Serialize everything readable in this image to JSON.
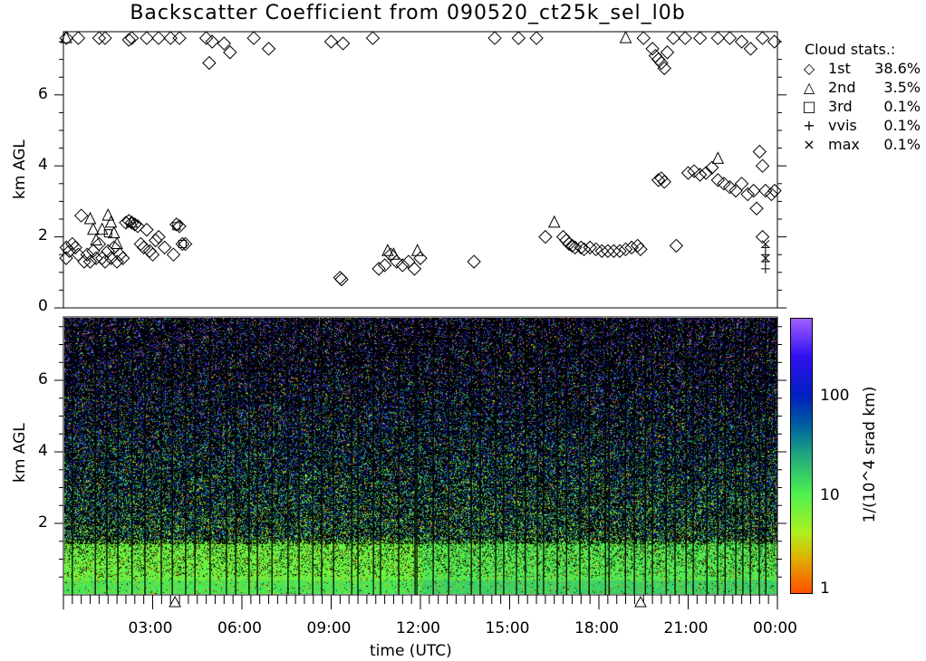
{
  "title": "Backscatter Coefficient from 090520_ct25k_sel_l0b",
  "chart_data": [
    {
      "type": "scatter",
      "panel": "cloud-base",
      "xlabel": "",
      "ylabel": "km AGL",
      "xlim_hours": [
        0,
        24
      ],
      "ylim": [
        0,
        7.7
      ],
      "yticks": [
        "0",
        "2",
        "4",
        "6"
      ],
      "legend": {
        "title": "Cloud stats.:",
        "placement": "right",
        "entries": [
          {
            "symbol": "diamond",
            "glyph": "◇",
            "name": "1st",
            "percent": "38.6%"
          },
          {
            "symbol": "triangle",
            "glyph": "△",
            "name": "2nd",
            "percent": "3.5%"
          },
          {
            "symbol": "square",
            "glyph": "□",
            "name": "3rd",
            "percent": "0.1%"
          },
          {
            "symbol": "plus",
            "glyph": "+",
            "name": "vvis",
            "percent": "0.1%"
          },
          {
            "symbol": "cross",
            "glyph": "×",
            "name": "max",
            "percent": "0.1%"
          }
        ]
      },
      "series": [
        {
          "name": "1st",
          "symbol": "diamond",
          "points": [
            [
              0.05,
              1.4
            ],
            [
              0.1,
              1.7
            ],
            [
              0.2,
              1.6
            ],
            [
              0.3,
              1.8
            ],
            [
              0.4,
              1.7
            ],
            [
              0.5,
              1.5
            ],
            [
              0.6,
              2.6
            ],
            [
              0.7,
              1.3
            ],
            [
              0.8,
              1.5
            ],
            [
              0.9,
              1.3
            ],
            [
              1.0,
              1.6
            ],
            [
              1.1,
              1.4
            ],
            [
              1.2,
              1.8
            ],
            [
              1.3,
              1.4
            ],
            [
              1.4,
              1.3
            ],
            [
              1.5,
              1.6
            ],
            [
              1.6,
              1.4
            ],
            [
              1.7,
              1.7
            ],
            [
              1.8,
              1.3
            ],
            [
              1.9,
              1.5
            ],
            [
              2.0,
              1.4
            ],
            [
              2.1,
              2.4
            ],
            [
              2.2,
              2.45
            ],
            [
              2.3,
              2.4
            ],
            [
              2.4,
              2.35
            ],
            [
              2.5,
              2.3
            ],
            [
              2.6,
              1.8
            ],
            [
              2.7,
              1.7
            ],
            [
              2.8,
              2.2
            ],
            [
              2.9,
              1.6
            ],
            [
              3.0,
              1.5
            ],
            [
              3.1,
              1.9
            ],
            [
              3.2,
              2.0
            ],
            [
              3.4,
              1.7
            ],
            [
              3.7,
              1.5
            ],
            [
              3.8,
              2.35
            ],
            [
              3.9,
              2.3
            ],
            [
              4.0,
              1.8
            ],
            [
              4.1,
              1.8
            ],
            [
              0.1,
              7.6
            ],
            [
              0.5,
              7.6
            ],
            [
              1.2,
              7.6
            ],
            [
              1.4,
              7.6
            ],
            [
              2.2,
              7.55
            ],
            [
              2.3,
              7.6
            ],
            [
              2.8,
              7.6
            ],
            [
              3.2,
              7.6
            ],
            [
              3.6,
              7.6
            ],
            [
              3.9,
              7.6
            ],
            [
              4.8,
              7.6
            ],
            [
              4.9,
              6.9
            ],
            [
              5.0,
              7.5
            ],
            [
              5.4,
              7.45
            ],
            [
              5.6,
              7.2
            ],
            [
              6.4,
              7.6
            ],
            [
              6.9,
              7.3
            ],
            [
              9.0,
              7.5
            ],
            [
              9.4,
              7.45
            ],
            [
              10.4,
              7.6
            ],
            [
              14.5,
              7.6
            ],
            [
              15.3,
              7.6
            ],
            [
              15.9,
              7.6
            ],
            [
              9.3,
              0.85
            ],
            [
              9.35,
              0.8
            ],
            [
              10.6,
              1.1
            ],
            [
              10.8,
              1.2
            ],
            [
              11.0,
              1.5
            ],
            [
              11.2,
              1.3
            ],
            [
              11.4,
              1.2
            ],
            [
              11.6,
              1.3
            ],
            [
              11.8,
              1.1
            ],
            [
              12.0,
              1.4
            ],
            [
              13.8,
              1.3
            ],
            [
              16.2,
              2.0
            ],
            [
              16.8,
              2.0
            ],
            [
              16.9,
              1.9
            ],
            [
              17.0,
              1.8
            ],
            [
              17.1,
              1.75
            ],
            [
              17.2,
              1.7
            ],
            [
              17.4,
              1.7
            ],
            [
              17.5,
              1.65
            ],
            [
              17.7,
              1.7
            ],
            [
              17.9,
              1.65
            ],
            [
              18.1,
              1.6
            ],
            [
              18.3,
              1.6
            ],
            [
              18.5,
              1.6
            ],
            [
              18.7,
              1.6
            ],
            [
              18.9,
              1.65
            ],
            [
              19.1,
              1.7
            ],
            [
              19.3,
              1.75
            ],
            [
              19.4,
              1.65
            ],
            [
              19.5,
              7.6
            ],
            [
              19.8,
              7.3
            ],
            [
              19.9,
              7.1
            ],
            [
              20.0,
              7.0
            ],
            [
              20.1,
              6.9
            ],
            [
              20.2,
              6.75
            ],
            [
              20.3,
              7.2
            ],
            [
              20.5,
              7.6
            ],
            [
              20.9,
              7.6
            ],
            [
              21.4,
              7.6
            ],
            [
              22.0,
              7.6
            ],
            [
              22.4,
              7.6
            ],
            [
              22.8,
              7.5
            ],
            [
              23.1,
              7.3
            ],
            [
              23.5,
              7.6
            ],
            [
              23.9,
              7.5
            ],
            [
              20.0,
              3.6
            ],
            [
              20.1,
              3.65
            ],
            [
              20.2,
              3.55
            ],
            [
              20.6,
              1.75
            ],
            [
              21.0,
              3.8
            ],
            [
              21.2,
              3.85
            ],
            [
              21.4,
              3.75
            ],
            [
              21.6,
              3.8
            ],
            [
              21.8,
              3.95
            ],
            [
              22.0,
              3.6
            ],
            [
              22.2,
              3.5
            ],
            [
              22.4,
              3.4
            ],
            [
              22.6,
              3.3
            ],
            [
              22.8,
              3.5
            ],
            [
              23.0,
              3.2
            ],
            [
              23.2,
              3.3
            ],
            [
              23.3,
              2.8
            ],
            [
              23.4,
              4.4
            ],
            [
              23.5,
              4.0
            ],
            [
              23.5,
              2.0
            ],
            [
              23.6,
              3.3
            ],
            [
              23.8,
              3.2
            ],
            [
              24.0,
              3.3
            ]
          ]
        },
        {
          "name": "2nd",
          "symbol": "triangle",
          "points": [
            [
              0.0,
              7.6
            ],
            [
              0.9,
              2.5
            ],
            [
              1.0,
              2.2
            ],
            [
              1.1,
              1.9
            ],
            [
              1.3,
              2.2
            ],
            [
              1.5,
              2.6
            ],
            [
              1.6,
              2.4
            ],
            [
              1.7,
              2.1
            ],
            [
              1.8,
              1.8
            ],
            [
              2.3,
              2.4
            ],
            [
              10.9,
              1.6
            ],
            [
              11.1,
              1.5
            ],
            [
              11.9,
              1.6
            ],
            [
              16.5,
              2.4
            ],
            [
              18.9,
              7.6
            ],
            [
              22.0,
              4.2
            ]
          ]
        },
        {
          "name": "3rd",
          "symbol": "square",
          "points": [
            [
              1.5,
              2.1
            ],
            [
              3.8,
              2.3
            ],
            [
              4.0,
              1.8
            ]
          ]
        },
        {
          "name": "vvis",
          "symbol": "plus",
          "points": [
            [
              23.6,
              1.1
            ],
            [
              23.6,
              1.3
            ],
            [
              23.6,
              1.5
            ],
            [
              23.6,
              1.7
            ]
          ]
        },
        {
          "name": "max",
          "symbol": "cross",
          "points": [
            [
              23.6,
              1.4
            ],
            [
              23.6,
              1.8
            ]
          ]
        }
      ]
    },
    {
      "type": "heatmap",
      "panel": "backscatter",
      "xlabel": "time (UTC)",
      "ylabel": "km AGL",
      "xlim_hours": [
        0,
        24
      ],
      "ylim": [
        0,
        7.7
      ],
      "yticks": [
        "2",
        "4",
        "6"
      ],
      "xticks": [
        "03:00",
        "06:00",
        "09:00",
        "12:00",
        "15:00",
        "18:00",
        "21:00",
        "00:00"
      ],
      "colorbar": {
        "label": "1/(10^4 srad km)",
        "scale": "log",
        "range": [
          1,
          600
        ],
        "ticks": [
          "1",
          "10",
          "100"
        ],
        "colors": [
          "#ff5000",
          "#e0b000",
          "#b0f020",
          "#50f050",
          "#20a880",
          "#0060a0",
          "#0020c0",
          "#3010f0",
          "#a060ff"
        ]
      },
      "data_gap_lines_hours": [
        0.3,
        1.07,
        1.46,
        1.83,
        2.31,
        2.74,
        3.29,
        3.66,
        4.11,
        4.42,
        4.93,
        5.48,
        5.79,
        6.24,
        6.52,
        7.01,
        7.55,
        7.92,
        8.38,
        8.68,
        9.08,
        9.69,
        9.9,
        10.42,
        10.66,
        11.27,
        11.82,
        11.88,
        12.43,
        12.95,
        13.71,
        14.01,
        14.53,
        14.8,
        15.23,
        15.53,
        15.93,
        16.14,
        16.6,
        16.91,
        17.36,
        17.67,
        18.22,
        18.34,
        18.89,
        19.19,
        19.56,
        19.8,
        20.26,
        20.56,
        20.93,
        21.17,
        21.63,
        21.99,
        22.24,
        22.6,
        22.84,
        23.09,
        23.39,
        23.61
      ],
      "axis_markers_hours": [
        3.75,
        19.4
      ],
      "axis_marker_symbol": "triangle"
    }
  ]
}
